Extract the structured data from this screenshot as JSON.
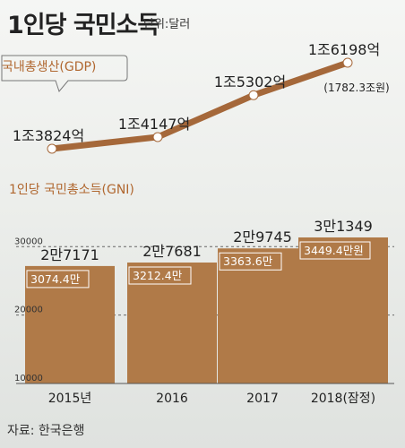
{
  "header": {
    "title": "1인당 국민소득",
    "unit": "단위:달러"
  },
  "footer": {
    "source": "자료: 한국은행"
  },
  "colors": {
    "bar": "#b07a48",
    "line": "#a5683a",
    "accent_text": "#b0672f"
  },
  "chart_data": [
    {
      "type": "line",
      "label": "국내총생산(GDP)",
      "x": [
        "2015년",
        "2016",
        "2017",
        "2018(잠정)"
      ],
      "values": [
        13824,
        14147,
        15302,
        16198
      ],
      "value_labels": [
        "1조3824억",
        "1조4147억",
        "1조5302억",
        "1조6198억"
      ],
      "annotations": [
        "(1782.3조원)"
      ],
      "units": "억 달러"
    },
    {
      "type": "bar",
      "label": "1인당 국민총소득(GNI)",
      "categories": [
        "2015년",
        "2016",
        "2017",
        "2018(잠정)"
      ],
      "values": [
        27171,
        27681,
        29745,
        31349
      ],
      "value_labels": [
        "2만7171",
        "2만7681",
        "2만9745",
        "3만1349"
      ],
      "inner_labels": [
        "3074.4만",
        "3212.4만",
        "3363.6만",
        "3449.4만원"
      ],
      "y_ticks": [
        "30000",
        "20000",
        "10000"
      ],
      "ylim": [
        10000,
        31349
      ]
    }
  ]
}
